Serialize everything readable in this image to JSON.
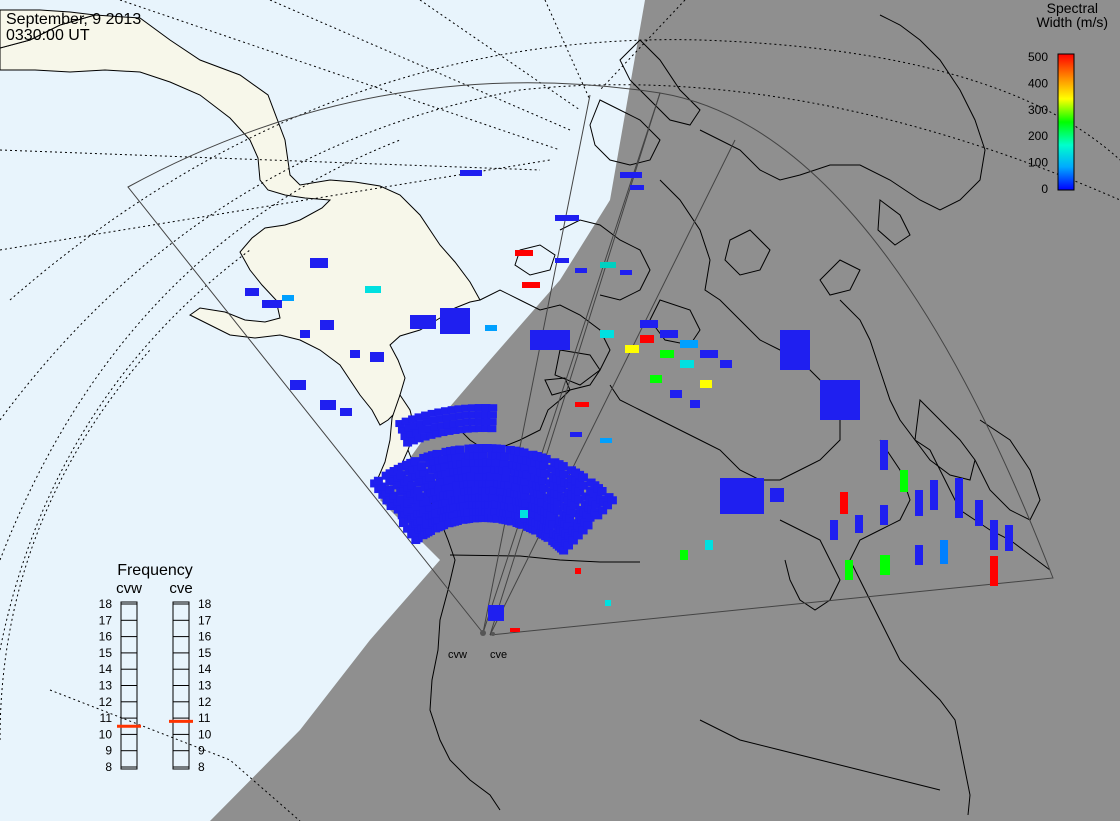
{
  "header": {
    "date": "September, 9 2013",
    "time": "0330:00 UT"
  },
  "colorbar": {
    "title_line1": "Spectral",
    "title_line2": "Width (m/s)",
    "ticks": [
      "500",
      "400",
      "300",
      "200",
      "100",
      "0"
    ],
    "stops": [
      "#0000ff",
      "#00aaff",
      "#00ffcc",
      "#00ff00",
      "#ffff00",
      "#ff8800",
      "#ff0000"
    ]
  },
  "frequency_panel": {
    "title": "Frequency",
    "radar_left": "cvw",
    "radar_right": "cve",
    "ticks": [
      "18",
      "17",
      "16",
      "15",
      "14",
      "13",
      "12",
      "11",
      "10",
      "9",
      "8"
    ],
    "cvw_value_mhz": 10.5,
    "cve_value_mhz": 10.8,
    "marker_color": "#ff3300"
  },
  "radar_labels": {
    "west": "cvw",
    "east": "cve"
  },
  "colors": {
    "ocean": "#e8f4fc",
    "land_day": "#f7f7ea",
    "night": "#8f8f8f",
    "coast": "#000000",
    "grid": "#000000"
  }
}
